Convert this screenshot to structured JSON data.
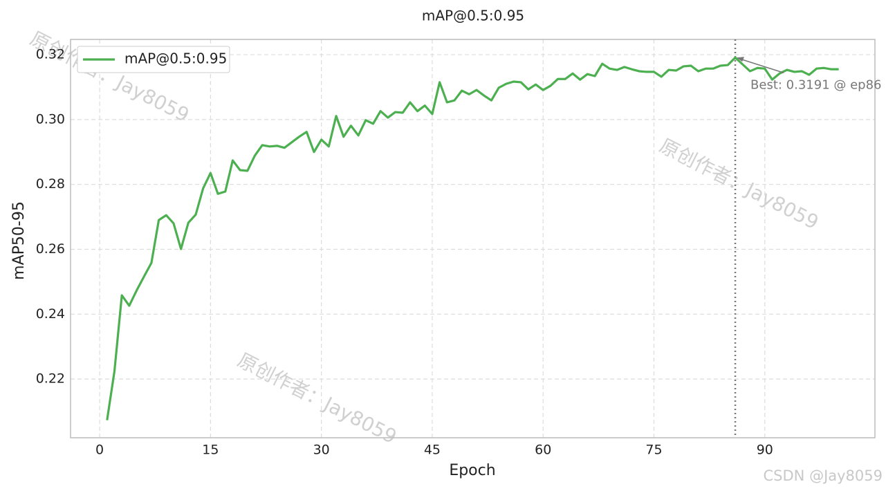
{
  "chart_data": {
    "type": "line",
    "title": "mAP@0.5:0.95",
    "x_label": "Epoch",
    "y_label": "mAP50-95",
    "x": [
      1,
      2,
      3,
      4,
      5,
      6,
      7,
      8,
      9,
      10,
      11,
      12,
      13,
      14,
      15,
      16,
      17,
      18,
      19,
      20,
      21,
      22,
      23,
      24,
      25,
      26,
      27,
      28,
      29,
      30,
      31,
      32,
      33,
      34,
      35,
      36,
      37,
      38,
      39,
      40,
      41,
      42,
      43,
      44,
      45,
      46,
      47,
      48,
      49,
      50,
      51,
      52,
      53,
      54,
      55,
      56,
      57,
      58,
      59,
      60,
      61,
      62,
      63,
      64,
      65,
      66,
      67,
      68,
      69,
      70,
      71,
      72,
      73,
      74,
      75,
      76,
      77,
      78,
      79,
      80,
      81,
      82,
      83,
      84,
      85,
      86,
      87,
      88,
      89,
      90,
      91,
      92,
      93,
      94,
      95,
      96,
      97,
      98,
      99,
      100
    ],
    "series": [
      {
        "name": "mAP@0.5:0.95",
        "color": "#4caf50",
        "values": [
          0.2073,
          0.2224,
          0.2458,
          0.2426,
          0.2473,
          0.2516,
          0.2558,
          0.269,
          0.2705,
          0.268,
          0.2601,
          0.2682,
          0.2707,
          0.2788,
          0.2835,
          0.2771,
          0.2778,
          0.2874,
          0.2844,
          0.2842,
          0.2889,
          0.2921,
          0.2917,
          0.2919,
          0.2913,
          0.293,
          0.2947,
          0.2962,
          0.29,
          0.2938,
          0.2917,
          0.3011,
          0.2947,
          0.2981,
          0.2951,
          0.2998,
          0.2987,
          0.3026,
          0.3006,
          0.3023,
          0.3021,
          0.3053,
          0.3026,
          0.3043,
          0.3017,
          0.3115,
          0.3053,
          0.3059,
          0.3089,
          0.3078,
          0.3091,
          0.3074,
          0.3059,
          0.3098,
          0.311,
          0.3117,
          0.3115,
          0.3093,
          0.3108,
          0.3091,
          0.3104,
          0.3125,
          0.3125,
          0.3142,
          0.3123,
          0.314,
          0.3134,
          0.3172,
          0.3157,
          0.3153,
          0.3162,
          0.3155,
          0.3149,
          0.3147,
          0.3147,
          0.3132,
          0.3153,
          0.3151,
          0.3164,
          0.3166,
          0.3149,
          0.3157,
          0.3157,
          0.3166,
          0.3168,
          0.3191,
          0.317,
          0.3149,
          0.3159,
          0.3157,
          0.3123,
          0.3142,
          0.3153,
          0.3147,
          0.3149,
          0.3138,
          0.3157,
          0.3159,
          0.3155,
          0.3155
        ]
      }
    ],
    "xlim": [
      -3.94,
      104.9
    ],
    "ylim": [
      0.2019,
      0.3247
    ],
    "xticks": [
      0,
      15,
      30,
      45,
      60,
      75,
      90
    ],
    "yticks": [
      0.22,
      0.24,
      0.26,
      0.28,
      {
        "value": 0.3,
        "label": "0.30"
      },
      0.32
    ],
    "grid": true,
    "legend": "upper left",
    "annotation": {
      "text": "Best: 0.3191 @ ep86",
      "x": 86,
      "y": 0.3191
    },
    "watermarks": [
      "原创作者：Jay8059",
      "原创作者：Jay8059",
      "原创作者：Jay8059"
    ],
    "footer_watermark": "CSDN @Jay8059"
  }
}
